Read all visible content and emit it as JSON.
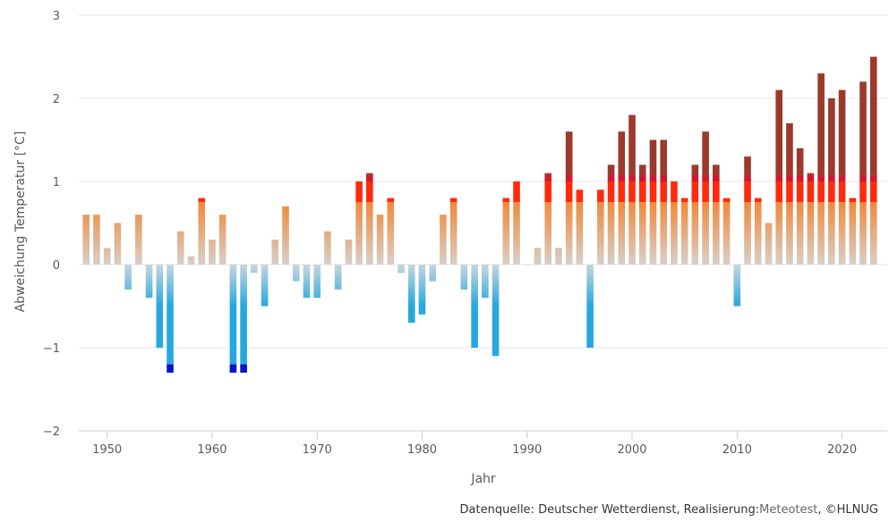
{
  "chart_data": {
    "type": "bar",
    "title": "",
    "xlabel": "Jahr",
    "ylabel": "Abweichung Temperatur [°C]",
    "ylim": [
      -2,
      3
    ],
    "yticks": [
      -2,
      -1,
      0,
      1,
      2,
      3
    ],
    "yticklabels": [
      "−2",
      "−1",
      "0",
      "1",
      "2",
      "3"
    ],
    "xlim": [
      1947.3,
      2024.3
    ],
    "xticks": [
      1950,
      1960,
      1970,
      1980,
      1990,
      2000,
      2010,
      2020
    ],
    "xticklabels": [
      "1950",
      "1960",
      "1970",
      "1980",
      "1990",
      "2000",
      "2010",
      "2020"
    ],
    "grid": true,
    "legend": "none",
    "x": [
      1948,
      1949,
      1950,
      1951,
      1952,
      1953,
      1954,
      1955,
      1956,
      1957,
      1958,
      1959,
      1960,
      1961,
      1962,
      1963,
      1964,
      1965,
      1966,
      1967,
      1968,
      1969,
      1970,
      1971,
      1972,
      1973,
      1974,
      1975,
      1976,
      1977,
      1978,
      1979,
      1980,
      1981,
      1982,
      1983,
      1984,
      1985,
      1986,
      1987,
      1988,
      1989,
      1990,
      1991,
      1992,
      1993,
      1994,
      1995,
      1996,
      1997,
      1998,
      1999,
      2000,
      2001,
      2002,
      2003,
      2004,
      2005,
      2006,
      2007,
      2008,
      2009,
      2010,
      2011,
      2012,
      2013,
      2014,
      2015,
      2016,
      2017,
      2018,
      2019,
      2020,
      2021,
      2022,
      2023
    ],
    "values": [
      0.6,
      0.6,
      0.2,
      0.5,
      -0.3,
      0.6,
      -0.4,
      -1.0,
      -1.3,
      0.4,
      0.1,
      0.8,
      0.3,
      0.6,
      -1.3,
      -1.3,
      -0.1,
      -0.5,
      0.3,
      0.7,
      -0.2,
      -0.4,
      -0.4,
      0.4,
      -0.3,
      0.3,
      1.0,
      1.1,
      0.6,
      0.8,
      -0.1,
      -0.7,
      -0.6,
      -0.2,
      0.6,
      0.8,
      -0.3,
      -1.0,
      -0.4,
      -1.1,
      0.8,
      1.0,
      0.0,
      0.2,
      1.1,
      0.2,
      1.6,
      0.9,
      -1.0,
      0.9,
      1.2,
      1.6,
      1.8,
      1.2,
      1.5,
      1.5,
      1.0,
      0.8,
      1.2,
      1.6,
      1.2,
      0.8,
      -0.5,
      1.3,
      0.8,
      0.5,
      2.1,
      1.7,
      1.4,
      1.1,
      2.3,
      2.0,
      2.1,
      0.8,
      2.2,
      2.5
    ],
    "colors": {
      "warm_light": "#d8cfc8",
      "warm_orange": "#f08a3c",
      "warm_red": "#ff2a0e",
      "warm_crimson": "#cc1b2e",
      "warm_dark": "#9b3a2c",
      "cold_light": "#c8d6dc",
      "cold_blue": "#26a8df",
      "cold_dark": "#0a12c8"
    }
  },
  "credits": {
    "prefix": "Datenquelle: Deutscher Wetterdienst, Realisierung:",
    "link": "Meteotest",
    "suffix": ", ©HLNUG"
  }
}
